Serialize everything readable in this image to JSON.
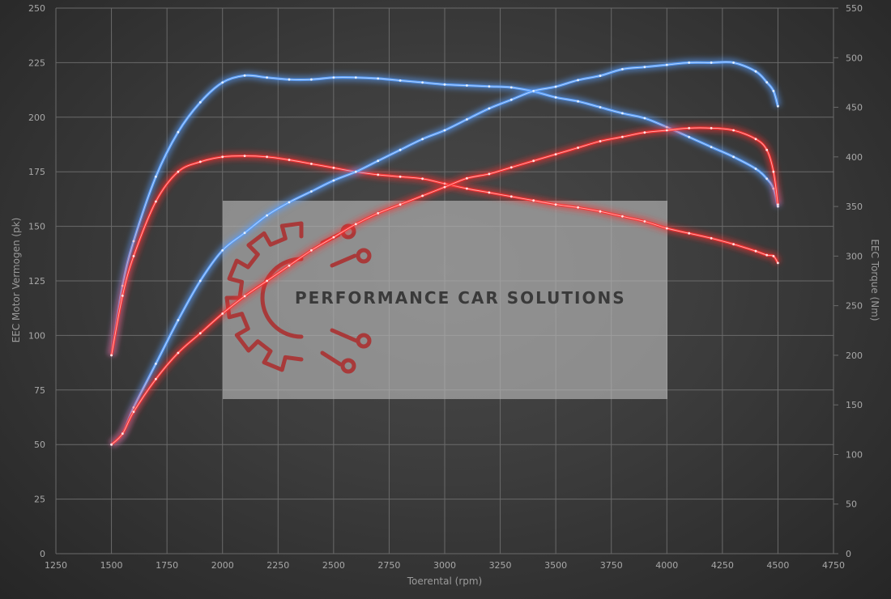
{
  "chart_data": {
    "type": "line",
    "title": "",
    "xlabel": "Toerental (rpm)",
    "ylabel_left": "EEC Motor Vermogen (pk)",
    "ylabel_right": "EEC Torque (Nm)",
    "xlim": [
      1250,
      4750
    ],
    "ylim_left": [
      0,
      250
    ],
    "ylim_right": [
      0,
      550
    ],
    "x_ticks": [
      1250,
      1500,
      1750,
      2000,
      2250,
      2500,
      2750,
      3000,
      3250,
      3500,
      3750,
      4000,
      4250,
      4500,
      4750
    ],
    "y_left_ticks": [
      0,
      25,
      50,
      75,
      100,
      125,
      150,
      175,
      200,
      225,
      250
    ],
    "y_right_ticks": [
      0,
      50,
      100,
      150,
      200,
      250,
      300,
      350,
      400,
      450,
      500,
      550
    ],
    "grid": true,
    "legend": "none",
    "series": [
      {
        "color": "#5aa0ff",
        "axis": "right",
        "x": [
          1500,
          1550,
          1600,
          1700,
          1800,
          1900,
          2000,
          2100,
          2200,
          2300,
          2400,
          2500,
          2600,
          2700,
          2800,
          2900,
          3000,
          3100,
          3200,
          3300,
          3400,
          3500,
          3600,
          3700,
          3800,
          3900,
          4000,
          4100,
          4200,
          4300,
          4400,
          4450,
          4480,
          4500
        ],
        "values": [
          200,
          270,
          315,
          380,
          425,
          455,
          475,
          482,
          480,
          478,
          478,
          480,
          480,
          479,
          477,
          475,
          473,
          472,
          471,
          470,
          466,
          460,
          456,
          450,
          444,
          439,
          430,
          420,
          410,
          400,
          388,
          378,
          368,
          350
        ]
      },
      {
        "color": "#ff3232",
        "axis": "right",
        "x": [
          1500,
          1550,
          1600,
          1700,
          1800,
          1900,
          2000,
          2100,
          2200,
          2300,
          2400,
          2500,
          2600,
          2700,
          2800,
          2900,
          3000,
          3100,
          3200,
          3300,
          3400,
          3500,
          3600,
          3700,
          3800,
          3900,
          4000,
          4100,
          4200,
          4300,
          4400,
          4450,
          4480,
          4500
        ],
        "values": [
          200,
          260,
          300,
          355,
          385,
          395,
          400,
          401,
          400,
          397,
          393,
          389,
          385,
          382,
          380,
          378,
          373,
          368,
          364,
          360,
          356,
          352,
          349,
          345,
          340,
          335,
          328,
          323,
          318,
          312,
          305,
          301,
          300,
          293
        ]
      },
      {
        "color": "#5aa0ff",
        "axis": "left",
        "x": [
          1500,
          1550,
          1600,
          1700,
          1800,
          1900,
          2000,
          2100,
          2200,
          2300,
          2400,
          2500,
          2600,
          2700,
          2800,
          2900,
          3000,
          3100,
          3200,
          3300,
          3400,
          3500,
          3600,
          3700,
          3800,
          3900,
          4000,
          4100,
          4200,
          4300,
          4400,
          4450,
          4480,
          4500
        ],
        "values": [
          50,
          55,
          67,
          87,
          107,
          125,
          139,
          147,
          155,
          161,
          166,
          171,
          175,
          180,
          185,
          190,
          194,
          199,
          204,
          208,
          212,
          214,
          217,
          219,
          222,
          223,
          224,
          225,
          225,
          225,
          221,
          216,
          212,
          205
        ]
      },
      {
        "color": "#ff3232",
        "axis": "left",
        "x": [
          1500,
          1550,
          1600,
          1700,
          1800,
          1900,
          2000,
          2100,
          2200,
          2300,
          2400,
          2500,
          2600,
          2700,
          2800,
          2900,
          3000,
          3100,
          3200,
          3300,
          3400,
          3500,
          3600,
          3700,
          3800,
          3900,
          4000,
          4100,
          4200,
          4300,
          4400,
          4450,
          4480,
          4500
        ],
        "values": [
          50,
          55,
          65,
          80,
          92,
          101,
          110,
          118,
          125,
          132,
          139,
          145,
          151,
          156,
          160,
          164,
          168,
          172,
          174,
          177,
          180,
          183,
          186,
          189,
          191,
          193,
          194,
          195,
          195,
          194,
          190,
          185,
          175,
          160
        ]
      }
    ]
  },
  "watermark": {
    "text": "PERFORMANCE CAR SOLUTIONS",
    "logo_color": "#a83a3a"
  }
}
